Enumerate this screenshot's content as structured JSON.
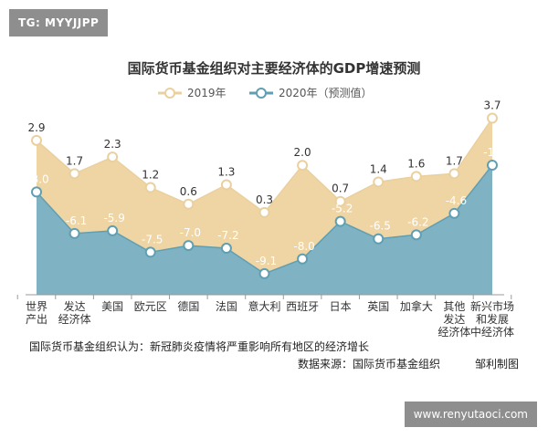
{
  "watermark": {
    "tag": "TG: MYYJJPP",
    "site": "www.renyutaoci.com"
  },
  "colors": {
    "series2019_fill": "#efd4a4",
    "series2019_line": "#ead09e",
    "series2020_fill": "#7fb2c3",
    "series2020_line": "#5f9fb3",
    "marker_fill": "#ffffff"
  },
  "chart_data": {
    "type": "area",
    "title": "国际货币基金组织对主要经济体的GDP增速预测",
    "categories": [
      [
        "世界",
        "产出"
      ],
      [
        "发达",
        "经济体"
      ],
      [
        "美国"
      ],
      [
        "欧元区"
      ],
      [
        "德国"
      ],
      [
        "法国"
      ],
      [
        "意大利"
      ],
      [
        "西班牙"
      ],
      [
        "日本"
      ],
      [
        "英国"
      ],
      [
        "加拿大"
      ],
      [
        "其他",
        "发达",
        "经济体"
      ],
      [
        "新兴市场",
        "和发展",
        "中经济体"
      ]
    ],
    "series": [
      {
        "name": "2019年",
        "values": [
          2.9,
          1.7,
          2.3,
          1.2,
          0.6,
          1.3,
          0.3,
          2.0,
          0.7,
          1.4,
          1.6,
          1.7,
          3.7
        ],
        "labels": [
          "2.9",
          "1.7",
          "2.3",
          "1.2",
          "0.6",
          "1.3",
          "0.3",
          "2.0",
          "0.7",
          "1.4",
          "1.6",
          "1.7",
          "3.7"
        ]
      },
      {
        "name": "2020年（预测值）",
        "values": [
          -3.0,
          -6.1,
          -5.9,
          -7.5,
          -7.0,
          -7.2,
          -9.1,
          -8.0,
          -5.2,
          -6.5,
          -6.2,
          -4.6,
          -1.0
        ],
        "labels": [
          "-3.0",
          "-6.1",
          "-5.9",
          "-7.5",
          "-7.0",
          "-7.2",
          "-9.1",
          "-8.0",
          "-5.2",
          "-6.5",
          "-6.2",
          "-4.6",
          "-1.0"
        ]
      }
    ],
    "legend_position": "top",
    "grid": false
  },
  "notes": {
    "caption": "国际货币基金组织认为：新冠肺炎疫情将严重影响所有地区的经济增长",
    "source": "数据来源：国际货币基金组织",
    "author": "邹利制图"
  }
}
